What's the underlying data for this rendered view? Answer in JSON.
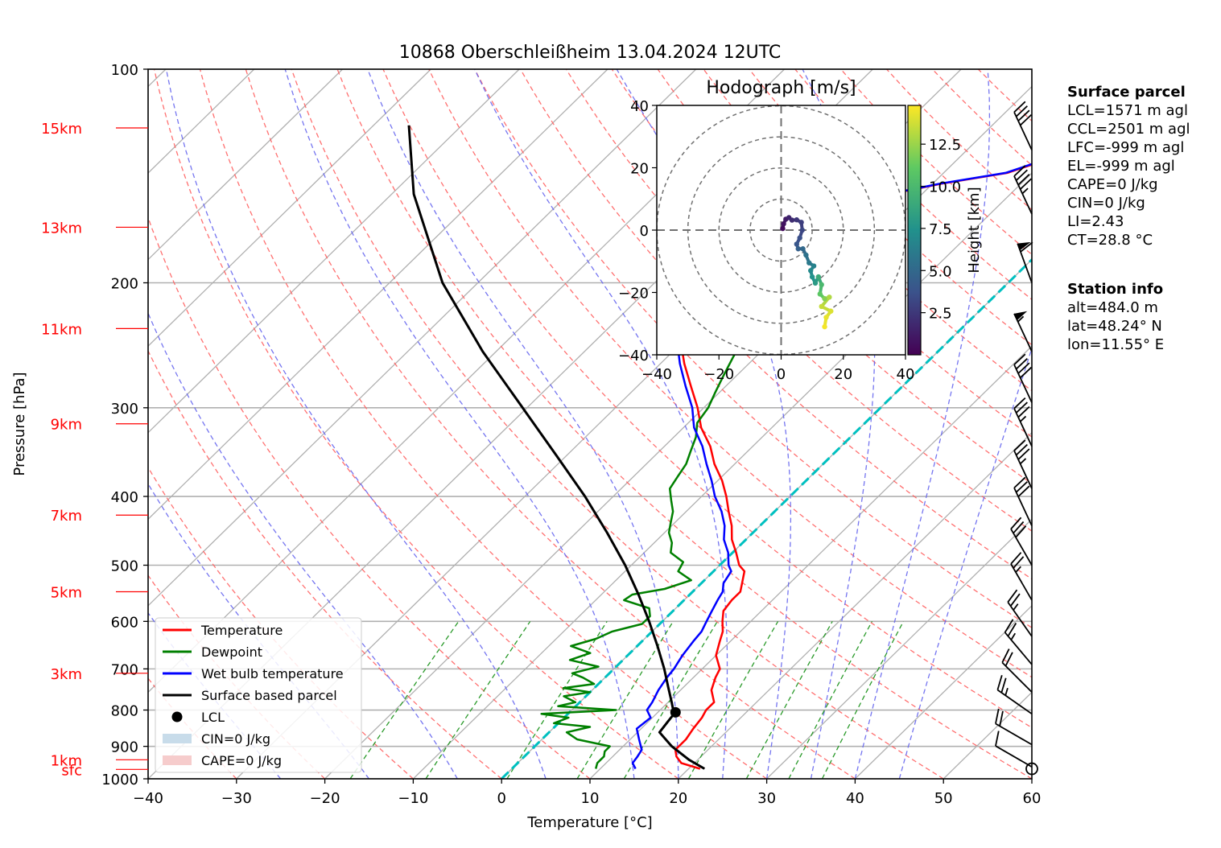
{
  "title": "10868 Oberschleißheim 13.04.2024 12UTC",
  "chart_data": {
    "type": "skew-t",
    "xlabel": "Temperature [°C]",
    "ylabel": "Pressure [hPa]",
    "xlim": [
      -40,
      60
    ],
    "ylim": [
      1000,
      100
    ],
    "x_ticks": [
      "−40",
      "−30",
      "−20",
      "−10",
      "0",
      "10",
      "20",
      "30",
      "40",
      "50",
      "60"
    ],
    "x_tick_values": [
      -40,
      -30,
      -20,
      -10,
      0,
      10,
      20,
      30,
      40,
      50,
      60
    ],
    "p_ticks": [
      "100",
      "200",
      "300",
      "400",
      "500",
      "600",
      "700",
      "800",
      "900",
      "1000"
    ],
    "p_tick_values": [
      100,
      200,
      300,
      400,
      500,
      600,
      700,
      800,
      900,
      1000
    ],
    "height_labels": [
      {
        "label": "sfc",
        "p": 970
      },
      {
        "label": "1km",
        "p": 940
      },
      {
        "label": "3km",
        "p": 710
      },
      {
        "label": "5km",
        "p": 545
      },
      {
        "label": "7km",
        "p": 425
      },
      {
        "label": "9km",
        "p": 316
      },
      {
        "label": "11km",
        "p": 232
      },
      {
        "label": "13km",
        "p": 167
      },
      {
        "label": "15km",
        "p": 121
      }
    ],
    "grid": true,
    "legend_position": "lower-left",
    "legend": [
      {
        "label": "Temperature",
        "color": "#ff0000",
        "kind": "line"
      },
      {
        "label": "Dewpoint",
        "color": "#008000",
        "kind": "line"
      },
      {
        "label": "Wet bulb temperature",
        "color": "#0000ff",
        "kind": "line"
      },
      {
        "label": "Surface based parcel",
        "color": "#000000",
        "kind": "line"
      },
      {
        "label": "LCL",
        "color": "#000000",
        "kind": "dot"
      },
      {
        "label": "CIN=0 J/kg",
        "color": "#c8dcea",
        "kind": "patch"
      },
      {
        "label": "CAPE=0 J/kg",
        "color": "#f6cccc",
        "kind": "patch"
      }
    ],
    "series": [
      {
        "name": "Temperature",
        "color": "#ff0000",
        "p": [
          968,
          950,
          930,
          910,
          880,
          850,
          820,
          800,
          780,
          750,
          720,
          700,
          670,
          640,
          620,
          600,
          580,
          560,
          545,
          530,
          510,
          500,
          480,
          460,
          440,
          420,
          400,
          380,
          360,
          340,
          320,
          300,
          280,
          260,
          240,
          220,
          210,
          205,
          200,
          195,
          190,
          185,
          180,
          175,
          170,
          165,
          160,
          155,
          150,
          145,
          140,
          135,
          130,
          125,
          120
        ],
        "T": [
          21.3,
          18.5,
          17.2,
          16.3,
          16.3,
          15.9,
          15.6,
          15.2,
          15.2,
          13.5,
          12.5,
          12.0,
          10.0,
          8.8,
          8.0,
          6.8,
          5.7,
          5.4,
          5.4,
          4.6,
          3.5,
          2.2,
          0.4,
          -1.6,
          -3.2,
          -5.2,
          -7.2,
          -9.5,
          -12.3,
          -14.8,
          -18.0,
          -20.7,
          -23.9,
          -27.3,
          -30.6,
          -33.6,
          -35.4,
          -36.2,
          -36.8,
          -36.6,
          -36.5,
          -36.6,
          -36.2,
          -35.6,
          -34.4,
          -32.8,
          -30.5,
          -27.4,
          -23.6,
          -19.0,
          -12.8,
          -10.3,
          -10.3,
          -10.1,
          -8.0
        ]
      },
      {
        "name": "Dewpoint",
        "color": "#008000",
        "p": [
          968,
          950,
          930,
          915,
          900,
          880,
          860,
          845,
          835,
          820,
          810,
          800,
          790,
          780,
          765,
          755,
          745,
          735,
          720,
          710,
          695,
          680,
          665,
          650,
          635,
          620,
          605,
          590,
          575,
          560,
          550,
          540,
          525,
          510,
          495,
          480,
          465,
          450,
          435,
          420,
          405,
          390,
          375,
          360,
          345,
          330,
          315,
          300,
          285,
          270,
          255,
          240,
          225,
          215,
          205,
          195,
          185,
          175,
          165,
          160,
          155,
          145,
          135,
          125,
          120
        ],
        "T": [
          9.5,
          9.0,
          9.0,
          8.5,
          8.5,
          4.0,
          2.0,
          4.0,
          -0.5,
          0.5,
          -3.0,
          5.0,
          -2.0,
          -0.5,
          -2.5,
          0.0,
          -3.5,
          -0.5,
          -2.5,
          -4.2,
          -2.0,
          -6.0,
          -4.5,
          -7.5,
          -5.5,
          -4.5,
          -2.0,
          -2.0,
          -3.0,
          -6.8,
          -6.5,
          -3.5,
          -1.5,
          -4.0,
          -4.5,
          -7.0,
          -8.0,
          -9.5,
          -10.5,
          -11.5,
          -13.0,
          -14.5,
          -15.0,
          -15.5,
          -16.5,
          -17.5,
          -19.0,
          -19.5,
          -20.5,
          -21.5,
          -22.5,
          -23.5,
          -25.5,
          -26.5,
          -28.0,
          -32.0,
          -32.5,
          -32.0,
          -31.5,
          -29.0,
          -36.5,
          -38.0,
          -38.5,
          -38.0,
          -38.0
        ]
      },
      {
        "name": "Wet bulb temperature",
        "color": "#0000ff",
        "p": [
          968,
          950,
          930,
          910,
          880,
          850,
          820,
          800,
          780,
          750,
          720,
          700,
          670,
          640,
          620,
          600,
          580,
          560,
          545,
          530,
          510,
          500,
          480,
          460,
          440,
          420,
          400,
          380,
          360,
          340,
          320,
          300,
          280,
          260,
          240,
          220,
          210,
          205,
          200,
          195,
          190,
          185,
          180,
          175,
          170,
          165,
          160,
          155,
          150,
          145,
          140,
          135,
          130,
          125,
          120
        ],
        "T": [
          14.0,
          13.0,
          12.8,
          12.5,
          11.0,
          9.5,
          9.8,
          8.5,
          8.2,
          7.5,
          7.0,
          6.8,
          6.2,
          5.8,
          5.6,
          5.0,
          4.4,
          3.8,
          3.4,
          2.5,
          2.0,
          1.0,
          -0.5,
          -2.5,
          -4.0,
          -6.0,
          -8.5,
          -10.7,
          -13.2,
          -15.7,
          -18.8,
          -21.3,
          -24.5,
          -27.8,
          -31.0,
          -34.0,
          -35.8,
          -36.5,
          -37.0,
          -36.8,
          -36.6,
          -36.7,
          -36.4,
          -35.8,
          -34.6,
          -33.0,
          -30.7,
          -27.6,
          -23.8,
          -19.2,
          -13.0,
          -10.5,
          -10.5,
          -10.3,
          -8.3
        ]
      },
      {
        "name": "Surface based parcel",
        "color": "#000000",
        "p": [
          968,
          940,
          900,
          860,
          830,
          810,
          780,
          740,
          700,
          650,
          600,
          550,
          500,
          450,
          400,
          350,
          300,
          250,
          200,
          150,
          120
        ],
        "T": [
          21.8,
          19.0,
          15.5,
          12.5,
          12.2,
          12.0,
          10.4,
          8.1,
          5.7,
          2.3,
          -1.5,
          -5.8,
          -10.7,
          -16.5,
          -23.2,
          -31.2,
          -40.5,
          -51.5,
          -64.0,
          -77.5,
          -86.0
        ]
      }
    ],
    "lcl": {
      "p": 806,
      "T": 12.0
    },
    "winds": [
      {
        "p": 962,
        "dir": 300,
        "kt": 10
      },
      {
        "p": 895,
        "dir": 300,
        "kt": 20
      },
      {
        "p": 810,
        "dir": 305,
        "kt": 25
      },
      {
        "p": 755,
        "dir": 315,
        "kt": 20
      },
      {
        "p": 690,
        "dir": 320,
        "kt": 25
      },
      {
        "p": 630,
        "dir": 325,
        "kt": 25
      },
      {
        "p": 560,
        "dir": 330,
        "kt": 25
      },
      {
        "p": 500,
        "dir": 330,
        "kt": 30
      },
      {
        "p": 440,
        "dir": 335,
        "kt": 30
      },
      {
        "p": 390,
        "dir": 335,
        "kt": 35
      },
      {
        "p": 340,
        "dir": 335,
        "kt": 35
      },
      {
        "p": 295,
        "dir": 335,
        "kt": 40
      },
      {
        "p": 250,
        "dir": 335,
        "kt": 55
      },
      {
        "p": 200,
        "dir": 340,
        "kt": 60
      },
      {
        "p": 160,
        "dir": 335,
        "kt": 45
      },
      {
        "p": 130,
        "dir": 335,
        "kt": 40
      }
    ],
    "calm_wind_p": 968,
    "hodograph": {
      "title": "Hodograph [m/s]",
      "xlim": [
        -40,
        40
      ],
      "ylim": [
        -40,
        40
      ],
      "ticks": [
        "−40",
        "−20",
        "0",
        "20",
        "40"
      ],
      "tick_values": [
        -40,
        -20,
        0,
        20,
        40
      ],
      "rings": [
        10,
        20,
        30,
        40
      ],
      "colorbar_label": "Height [km]",
      "colorbar_ticks": [
        "2.5",
        "5.0",
        "7.5",
        "10.0",
        "12.5"
      ],
      "colorbar_tick_values": [
        2.5,
        5.0,
        7.5,
        10.0,
        12.5
      ],
      "colorbar_range": [
        0,
        14.8
      ],
      "points": [
        {
          "u": 0.5,
          "v": 0.5,
          "z": 0.5
        },
        {
          "u": 0.8,
          "v": 2.0,
          "z": 0.8
        },
        {
          "u": 1.5,
          "v": 3.5,
          "z": 1.2
        },
        {
          "u": 2.5,
          "v": 4.0,
          "z": 1.6
        },
        {
          "u": 3.5,
          "v": 3.2,
          "z": 2.0
        },
        {
          "u": 5.0,
          "v": 3.3,
          "z": 2.4
        },
        {
          "u": 6.5,
          "v": 2.5,
          "z": 2.8
        },
        {
          "u": 6.8,
          "v": 0.0,
          "z": 3.2
        },
        {
          "u": 6.0,
          "v": -2.5,
          "z": 3.6
        },
        {
          "u": 5.0,
          "v": -4.5,
          "z": 4.0
        },
        {
          "u": 5.5,
          "v": -6.0,
          "z": 4.5
        },
        {
          "u": 7.0,
          "v": -6.0,
          "z": 5.0
        },
        {
          "u": 8.0,
          "v": -8.0,
          "z": 5.5
        },
        {
          "u": 9.0,
          "v": -10.5,
          "z": 6.0
        },
        {
          "u": 10.5,
          "v": -11.5,
          "z": 6.5
        },
        {
          "u": 9.5,
          "v": -13.0,
          "z": 7.0
        },
        {
          "u": 10.0,
          "v": -15.0,
          "z": 7.5
        },
        {
          "u": 11.0,
          "v": -17.0,
          "z": 8.0
        },
        {
          "u": 12.0,
          "v": -15.0,
          "z": 9.0
        },
        {
          "u": 13.0,
          "v": -17.5,
          "z": 10.0
        },
        {
          "u": 12.5,
          "v": -20.5,
          "z": 11.0
        },
        {
          "u": 14.0,
          "v": -22.0,
          "z": 12.0
        },
        {
          "u": 15.5,
          "v": -21.5,
          "z": 13.0
        },
        {
          "u": 13.0,
          "v": -24.5,
          "z": 13.5
        },
        {
          "u": 16.0,
          "v": -26.0,
          "z": 14.0
        },
        {
          "u": 14.5,
          "v": -28.0,
          "z": 14.3
        },
        {
          "u": 14.0,
          "v": -31.0,
          "z": 14.6
        }
      ]
    }
  },
  "surface_parcel": {
    "header": "Surface parcel",
    "lines": [
      "LCL=1571 m agl",
      "CCL=2501 m agl",
      "LFC=-999 m agl",
      "EL=-999 m agl",
      "CAPE=0 J/kg",
      "CIN=0 J/kg",
      "LI=2.43",
      "CT=28.8 °C"
    ]
  },
  "station_info": {
    "header": "Station info",
    "lines": [
      "alt=484.0 m",
      "lat=48.24° N",
      "lon=11.55° E"
    ]
  }
}
